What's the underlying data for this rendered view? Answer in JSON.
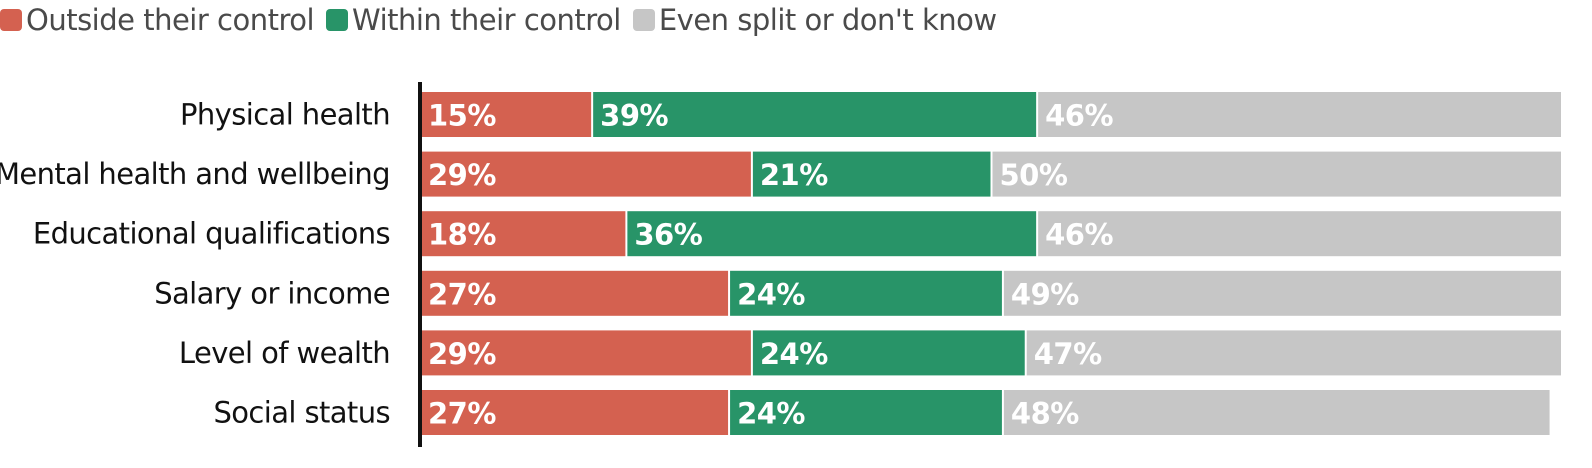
{
  "legend": {
    "outside": {
      "label": "Outside their control",
      "color": "#d46150"
    },
    "within": {
      "label": "Within their control",
      "color": "#289468"
    },
    "neutral": {
      "label": "Even split or don't know",
      "color": "#c6c6c6"
    }
  },
  "chart_data": {
    "type": "bar",
    "orientation": "horizontal",
    "stacked": true,
    "categories": [
      "Physical health",
      "Mental health and wellbeing",
      "Educational qualifications",
      "Salary or income",
      "Level of wealth",
      "Social status"
    ],
    "series": [
      {
        "name": "Outside their control",
        "color": "#d46150",
        "values": [
          15,
          29,
          18,
          27,
          29,
          27
        ]
      },
      {
        "name": "Within their control",
        "color": "#289468",
        "values": [
          39,
          21,
          36,
          24,
          24,
          24
        ]
      },
      {
        "name": "Even split or don't know",
        "color": "#c6c6c6",
        "values": [
          46,
          50,
          46,
          49,
          47,
          48
        ]
      }
    ],
    "value_suffix": "%",
    "xlim": [
      0,
      100
    ],
    "legend_position": "top-left",
    "grid": false
  }
}
